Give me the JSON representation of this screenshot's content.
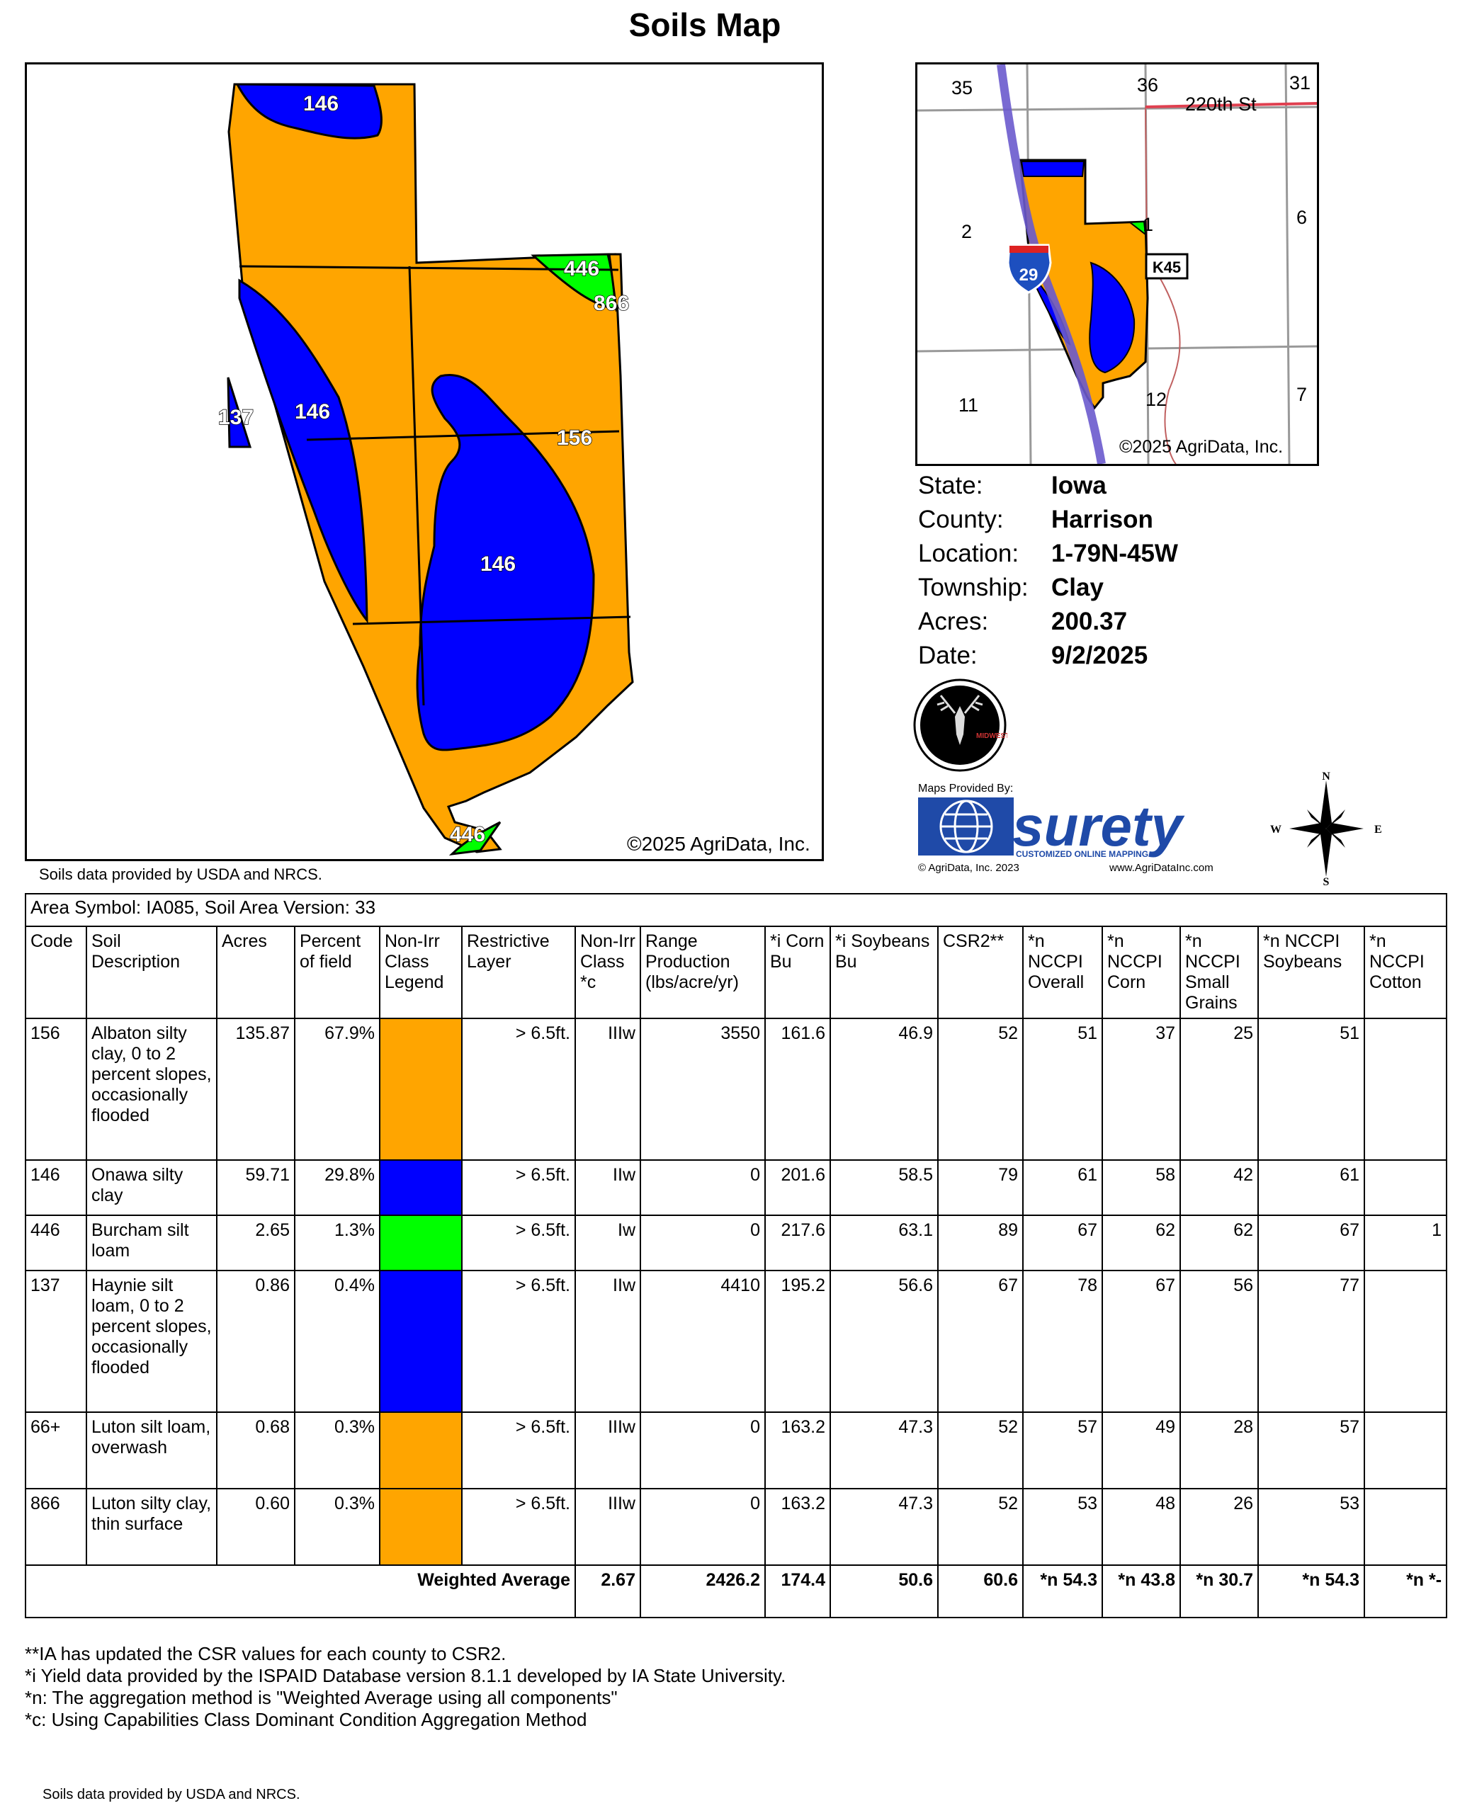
{
  "title": "Soils Map",
  "main_map": {
    "copyright": "©2025 AgriData, Inc.",
    "labels": [
      "146",
      "446",
      "866",
      "137",
      "146",
      "156",
      "146",
      "446"
    ]
  },
  "soils_credit_top": "Soils data provided by USDA and NRCS.",
  "inset_map": {
    "section_numbers": [
      "35",
      "36",
      "31",
      "2",
      "1",
      "6",
      "11",
      "12",
      "7"
    ],
    "road_label": "220th St",
    "interstate": "29",
    "county_road": "K45",
    "copyright": "©2025 AgriData, Inc."
  },
  "info": [
    {
      "label": "State:",
      "value": "Iowa"
    },
    {
      "label": "County:",
      "value": "Harrison"
    },
    {
      "label": "Location:",
      "value": "1-79N-45W"
    },
    {
      "label": "Township:",
      "value": "Clay"
    },
    {
      "label": "Acres:",
      "value": "200.37"
    },
    {
      "label": "Date:",
      "value": "9/2/2025"
    }
  ],
  "logo_text": "MIDWEST",
  "surety": {
    "maps_provided_by": "Maps Provided By:",
    "brand": "surety",
    "tagline": "CUSTOMIZED ONLINE MAPPING",
    "copyright": "© AgriData, Inc. 2023",
    "website": "www.AgriDataInc.com"
  },
  "compass": {
    "n": "N",
    "s": "S",
    "e": "E",
    "w": "W"
  },
  "colors": {
    "orange": "#ffa500",
    "blue": "#0000ff",
    "green": "#00ff00"
  },
  "table": {
    "area_symbol": "Area Symbol: IA085, Soil Area Version: 33",
    "headers": [
      "Code",
      "Soil Description",
      "Acres",
      "Percent of field",
      "Non-Irr Class Legend",
      "Restrictive Layer",
      "Non-Irr Class *c",
      "Range Production (lbs/acre/yr)",
      "*i Corn Bu",
      "*i Soybeans Bu",
      "CSR2**",
      "*n NCCPI Overall",
      "*n NCCPI Corn",
      "*n NCCPI Small Grains",
      "*n NCCPI Soybeans",
      "*n NCCPI Cotton"
    ],
    "rows": [
      {
        "code": "156",
        "desc": "Albaton silty clay, 0 to 2 percent slopes, occasionally flooded",
        "acres": "135.87",
        "percent": "67.9%",
        "legend_color": "#ffa500",
        "restrictive": "> 6.5ft.",
        "class": "IIIw",
        "range": "3550",
        "corn": "161.6",
        "soy": "46.9",
        "csr2": "52",
        "overall": "51",
        "ncorn": "37",
        "small": "25",
        "nsoy": "51",
        "cotton": ""
      },
      {
        "code": "146",
        "desc": "Onawa silty clay",
        "acres": "59.71",
        "percent": "29.8%",
        "legend_color": "#0000ff",
        "restrictive": "> 6.5ft.",
        "class": "IIw",
        "range": "0",
        "corn": "201.6",
        "soy": "58.5",
        "csr2": "79",
        "overall": "61",
        "ncorn": "58",
        "small": "42",
        "nsoy": "61",
        "cotton": ""
      },
      {
        "code": "446",
        "desc": "Burcham silt loam",
        "acres": "2.65",
        "percent": "1.3%",
        "legend_color": "#00ff00",
        "restrictive": "> 6.5ft.",
        "class": "Iw",
        "range": "0",
        "corn": "217.6",
        "soy": "63.1",
        "csr2": "89",
        "overall": "67",
        "ncorn": "62",
        "small": "62",
        "nsoy": "67",
        "cotton": "1"
      },
      {
        "code": "137",
        "desc": "Haynie silt loam, 0 to 2 percent slopes, occasionally flooded",
        "acres": "0.86",
        "percent": "0.4%",
        "legend_color": "#0000ff",
        "restrictive": "> 6.5ft.",
        "class": "IIw",
        "range": "4410",
        "corn": "195.2",
        "soy": "56.6",
        "csr2": "67",
        "overall": "78",
        "ncorn": "67",
        "small": "56",
        "nsoy": "77",
        "cotton": ""
      },
      {
        "code": "66+",
        "desc": "Luton silt loam, overwash",
        "acres": "0.68",
        "percent": "0.3%",
        "legend_color": "#ffa500",
        "restrictive": "> 6.5ft.",
        "class": "IIIw",
        "range": "0",
        "corn": "163.2",
        "soy": "47.3",
        "csr2": "52",
        "overall": "57",
        "ncorn": "49",
        "small": "28",
        "nsoy": "57",
        "cotton": ""
      },
      {
        "code": "866",
        "desc": "Luton silty clay, thin surface",
        "acres": "0.60",
        "percent": "0.3%",
        "legend_color": "#ffa500",
        "restrictive": "> 6.5ft.",
        "class": "IIIw",
        "range": "0",
        "corn": "163.2",
        "soy": "47.3",
        "csr2": "52",
        "overall": "53",
        "ncorn": "48",
        "small": "26",
        "nsoy": "53",
        "cotton": ""
      }
    ],
    "weighted_average": {
      "label": "Weighted Average",
      "class": "2.67",
      "range": "2426.2",
      "corn": "174.4",
      "soy": "50.6",
      "csr2": "60.6",
      "overall": "*n 54.3",
      "ncorn": "*n 43.8",
      "small": "*n 30.7",
      "nsoy": "*n 54.3",
      "cotton": "*n *-"
    }
  },
  "footnotes": [
    "**IA has updated the CSR values for each county to CSR2.",
    "*i Yield data provided by the ISPAID Database version 8.1.1 developed by IA State University.",
    "*n: The aggregation method is \"Weighted Average using all components\"",
    "*c: Using Capabilities Class Dominant Condition Aggregation Method"
  ],
  "soils_credit_bottom": "Soils data provided by USDA and NRCS."
}
